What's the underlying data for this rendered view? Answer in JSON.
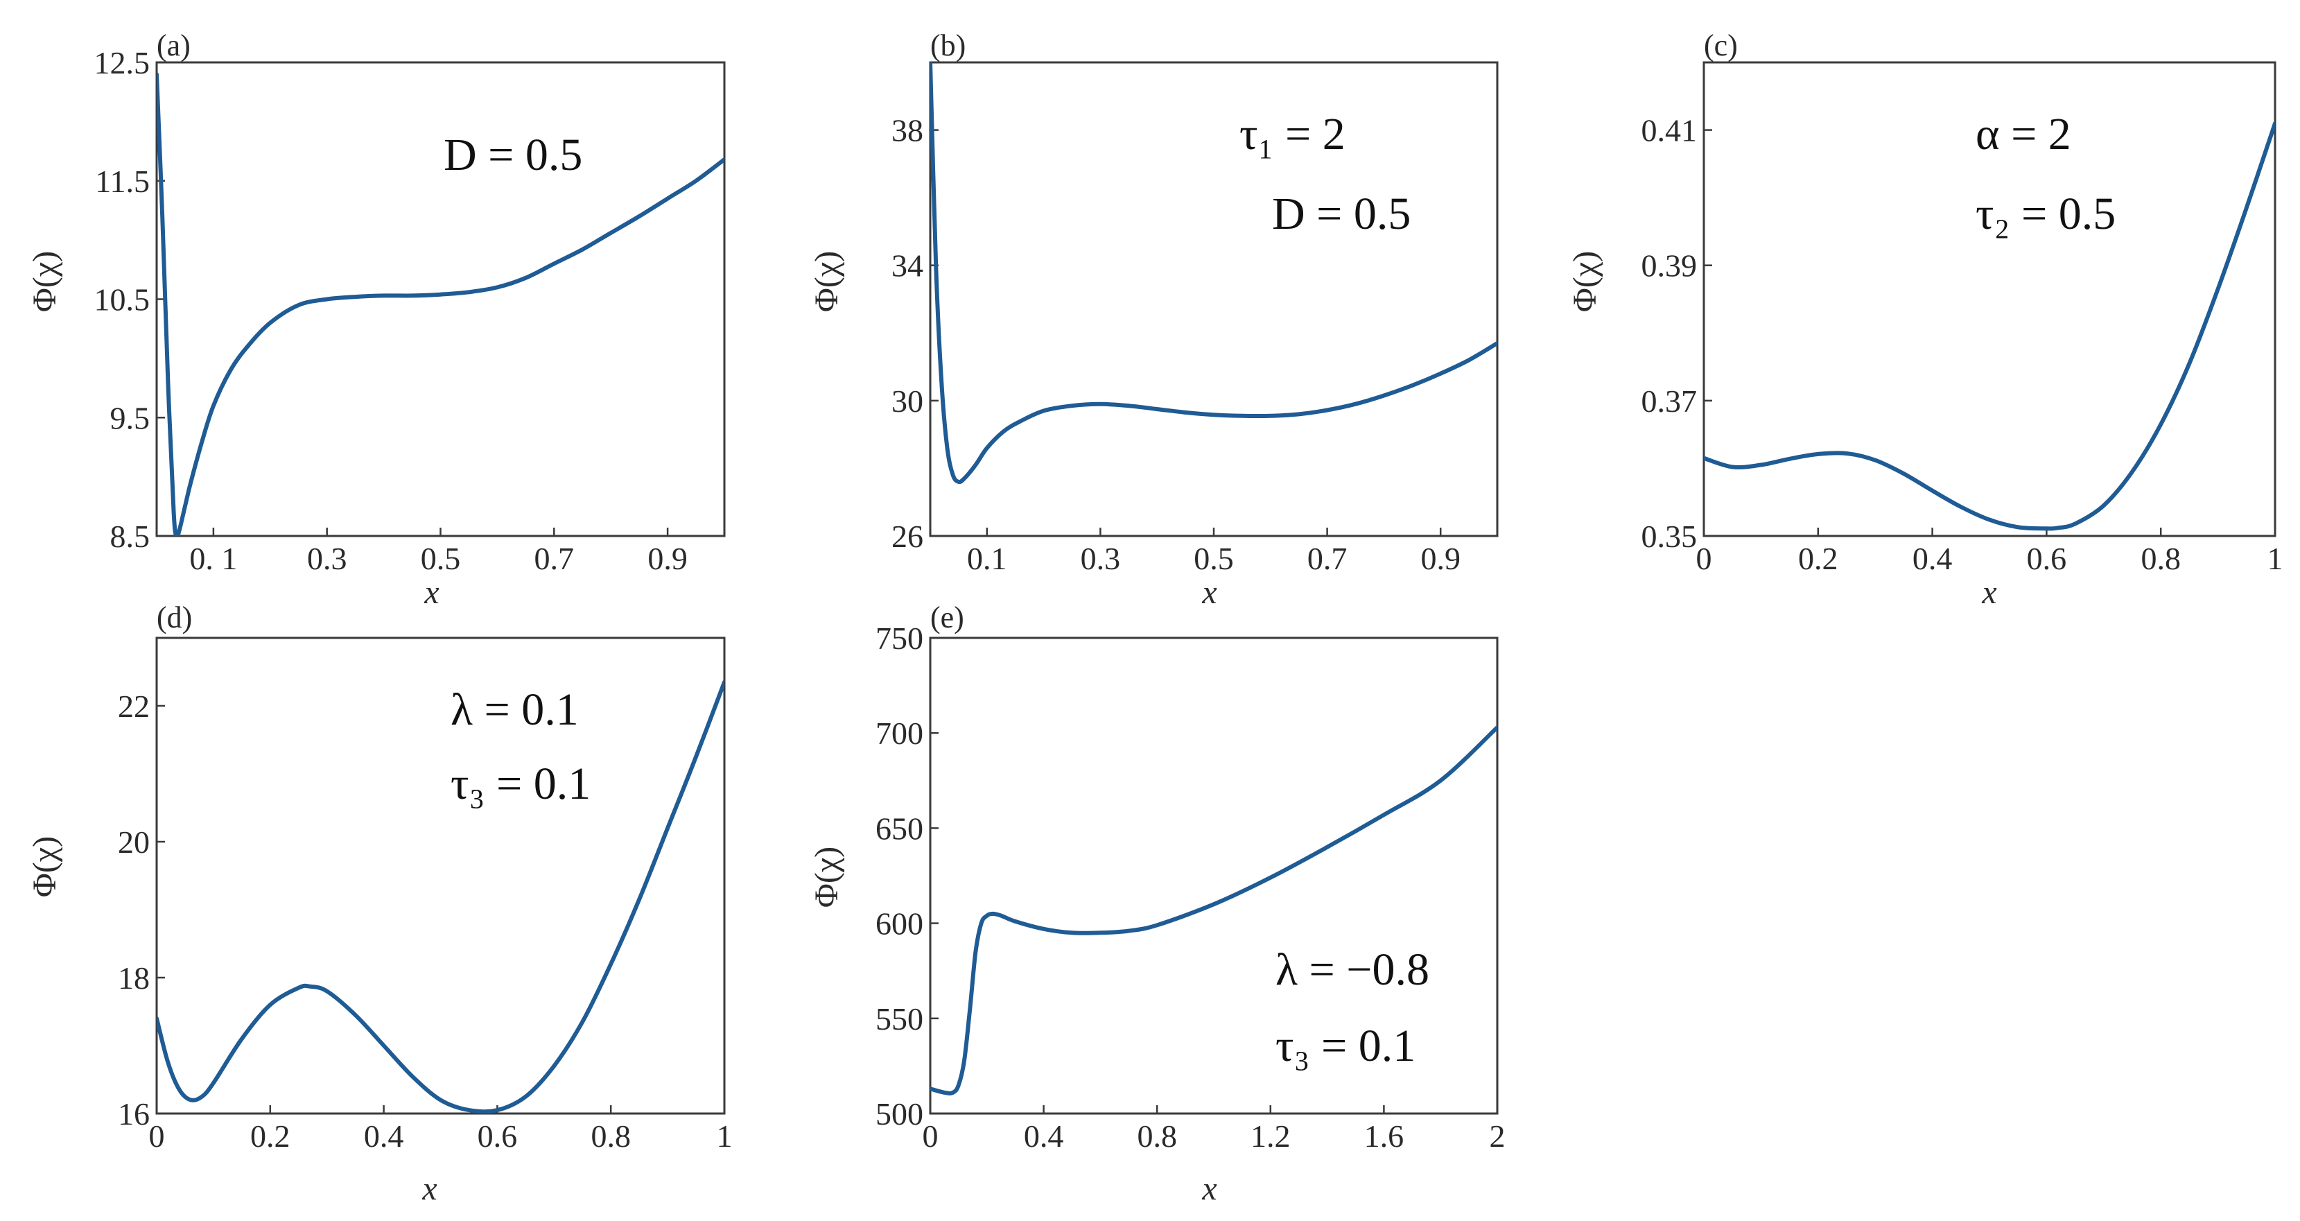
{
  "colors": {
    "curve": "#1f5b94",
    "axis": "#3a3a3a"
  },
  "chart_data": [
    {
      "id": "a",
      "type": "line",
      "panel_label": "(a)",
      "xlabel": "x",
      "ylabel": "Φ(χ)",
      "xlim": [
        0,
        1
      ],
      "ylim": [
        8.5,
        12.5
      ],
      "xticks": [
        0.1,
        0.3,
        0.5,
        0.7,
        0.9
      ],
      "xtick_labels": [
        "0. 1",
        "0.3",
        "0.5",
        "0.7",
        "0.9"
      ],
      "yticks": [
        8.5,
        9.5,
        10.5,
        11.5,
        12.5
      ],
      "ytick_labels": [
        "8.5",
        "9.5",
        "10.5",
        "11.5",
        "12.5"
      ],
      "annotations": [
        "D = 0.5"
      ],
      "series": [
        {
          "x": [
            0.0,
            0.01,
            0.02,
            0.03,
            0.035,
            0.04,
            0.05,
            0.06,
            0.08,
            0.1,
            0.13,
            0.16,
            0.2,
            0.25,
            0.3,
            0.35,
            0.4,
            0.45,
            0.5,
            0.55,
            0.6,
            0.65,
            0.7,
            0.75,
            0.8,
            0.85,
            0.9,
            0.95,
            1.0
          ],
          "y": [
            12.4,
            11.2,
            9.8,
            8.7,
            8.5,
            8.55,
            8.75,
            8.95,
            9.3,
            9.6,
            9.9,
            10.1,
            10.3,
            10.45,
            10.5,
            10.52,
            10.53,
            10.53,
            10.54,
            10.56,
            10.6,
            10.68,
            10.8,
            10.92,
            11.06,
            11.2,
            11.35,
            11.5,
            11.68
          ]
        }
      ]
    },
    {
      "id": "b",
      "type": "line",
      "panel_label": "(b)",
      "xlabel": "x",
      "ylabel": "Φ(χ)",
      "xlim": [
        0,
        1
      ],
      "ylim": [
        26,
        40
      ],
      "xticks": [
        0.1,
        0.3,
        0.5,
        0.7,
        0.9
      ],
      "xtick_labels": [
        "0.1",
        "0.3",
        "0.5",
        "0.7",
        "0.9"
      ],
      "yticks": [
        26,
        30,
        34,
        38
      ],
      "ytick_labels": [
        "26",
        "30",
        "34",
        "38"
      ],
      "annotations": [
        "τ₁ = 2",
        "D = 0.5"
      ],
      "series": [
        {
          "x": [
            0.0,
            0.01,
            0.02,
            0.03,
            0.04,
            0.05,
            0.06,
            0.08,
            0.1,
            0.13,
            0.16,
            0.2,
            0.25,
            0.3,
            0.35,
            0.4,
            0.45,
            0.5,
            0.55,
            0.6,
            0.65,
            0.7,
            0.75,
            0.8,
            0.85,
            0.9,
            0.95,
            1.0
          ],
          "y": [
            40,
            34,
            30.5,
            28.6,
            27.8,
            27.6,
            27.7,
            28.1,
            28.6,
            29.1,
            29.4,
            29.7,
            29.85,
            29.9,
            29.85,
            29.75,
            29.65,
            29.58,
            29.55,
            29.55,
            29.6,
            29.72,
            29.9,
            30.15,
            30.45,
            30.8,
            31.2,
            31.7
          ]
        }
      ]
    },
    {
      "id": "c",
      "type": "line",
      "panel_label": "(c)",
      "xlabel": "x",
      "ylabel": "Φ(χ)",
      "xlim": [
        0,
        1
      ],
      "ylim": [
        0.35,
        0.42
      ],
      "xticks": [
        0,
        0.2,
        0.4,
        0.6,
        0.8,
        1
      ],
      "xtick_labels": [
        "0",
        "0.2",
        "0.4",
        "0.6",
        "0.8",
        "1"
      ],
      "yticks": [
        0.35,
        0.37,
        0.39,
        0.41
      ],
      "ytick_labels": [
        "0.35",
        "0.37",
        "0.39",
        "0.41"
      ],
      "annotations": [
        "α = 2",
        "τ₂ = 0.5"
      ],
      "series": [
        {
          "x": [
            0.0,
            0.05,
            0.1,
            0.15,
            0.2,
            0.25,
            0.3,
            0.35,
            0.4,
            0.45,
            0.5,
            0.55,
            0.6,
            0.62,
            0.65,
            0.7,
            0.75,
            0.8,
            0.85,
            0.9,
            0.95,
            1.0
          ],
          "y": [
            0.3615,
            0.3602,
            0.3605,
            0.3614,
            0.3621,
            0.3622,
            0.3612,
            0.3592,
            0.3567,
            0.3543,
            0.3524,
            0.3513,
            0.3511,
            0.3512,
            0.3518,
            0.3545,
            0.3595,
            0.3665,
            0.3755,
            0.3865,
            0.3985,
            0.411
          ]
        }
      ]
    },
    {
      "id": "d",
      "type": "line",
      "panel_label": "(d)",
      "xlabel": "x",
      "ylabel": "Φ(χ)",
      "xlim": [
        0,
        1
      ],
      "ylim": [
        16,
        23
      ],
      "xticks": [
        0,
        0.2,
        0.4,
        0.6,
        0.8,
        1
      ],
      "xtick_labels": [
        "0",
        "0.2",
        "0.4",
        "0.6",
        "0.8",
        "1"
      ],
      "yticks": [
        16,
        18,
        20,
        22
      ],
      "ytick_labels": [
        "16",
        "18",
        "20",
        "22"
      ],
      "annotations": [
        "λ = 0.1",
        "τ₃ = 0.1"
      ],
      "series": [
        {
          "x": [
            0.0,
            0.02,
            0.04,
            0.06,
            0.08,
            0.1,
            0.15,
            0.2,
            0.25,
            0.27,
            0.3,
            0.35,
            0.4,
            0.45,
            0.5,
            0.55,
            0.6,
            0.65,
            0.7,
            0.75,
            0.8,
            0.85,
            0.9,
            0.95,
            1.0
          ],
          "y": [
            17.4,
            16.75,
            16.35,
            16.2,
            16.25,
            16.45,
            17.1,
            17.6,
            17.85,
            17.87,
            17.8,
            17.45,
            17.0,
            16.55,
            16.2,
            16.05,
            16.05,
            16.25,
            16.7,
            17.35,
            18.2,
            19.15,
            20.2,
            21.25,
            22.35
          ]
        }
      ]
    },
    {
      "id": "e",
      "type": "line",
      "panel_label": "(e)",
      "xlabel": "x",
      "ylabel": "Φ(χ)",
      "xlim": [
        0,
        2
      ],
      "ylim": [
        500,
        750
      ],
      "xticks": [
        0,
        0.4,
        0.8,
        1.2,
        1.6,
        2
      ],
      "xtick_labels": [
        "0",
        "0.4",
        "0.8",
        "1.2",
        "1.6",
        "2"
      ],
      "yticks": [
        500,
        550,
        600,
        650,
        700,
        750
      ],
      "ytick_labels": [
        "500",
        "550",
        "600",
        "650",
        "700",
        "750"
      ],
      "annotations": [
        "λ = −0.8",
        "τ₃ = 0.1"
      ],
      "series": [
        {
          "x": [
            0.0,
            0.05,
            0.08,
            0.1,
            0.12,
            0.14,
            0.16,
            0.18,
            0.2,
            0.22,
            0.25,
            0.3,
            0.4,
            0.5,
            0.6,
            0.7,
            0.8,
            1.0,
            1.2,
            1.4,
            1.6,
            1.8,
            2.0
          ],
          "y": [
            513,
            511,
            511,
            515,
            528,
            555,
            585,
            600,
            604,
            605,
            604,
            601,
            597,
            595,
            595,
            596,
            599,
            610,
            624,
            640,
            657,
            675,
            703
          ]
        }
      ]
    }
  ]
}
